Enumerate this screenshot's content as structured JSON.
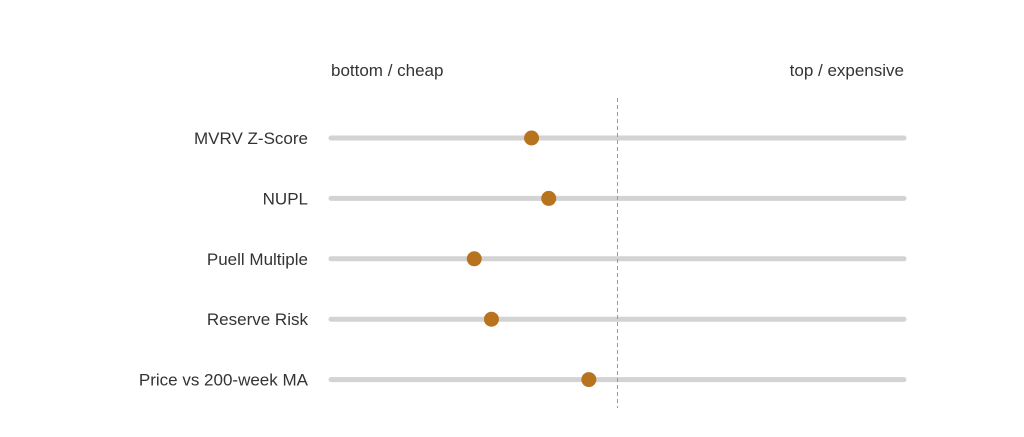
{
  "chart_data": {
    "type": "scatter",
    "xlim": [
      0,
      1
    ],
    "left_label": "bottom / cheap",
    "right_label": "top / expensive",
    "midpoint": 0.5,
    "colors": {
      "marker": "#b8731f",
      "track": "#d3d3d3",
      "midline": "#9a9a9a"
    },
    "categories": [
      "MVRV Z-Score",
      "NUPL",
      "Puell Multiple",
      "Reserve Risk",
      "Price vs 200-week MA"
    ],
    "values": [
      0.35,
      0.38,
      0.25,
      0.28,
      0.45
    ]
  }
}
